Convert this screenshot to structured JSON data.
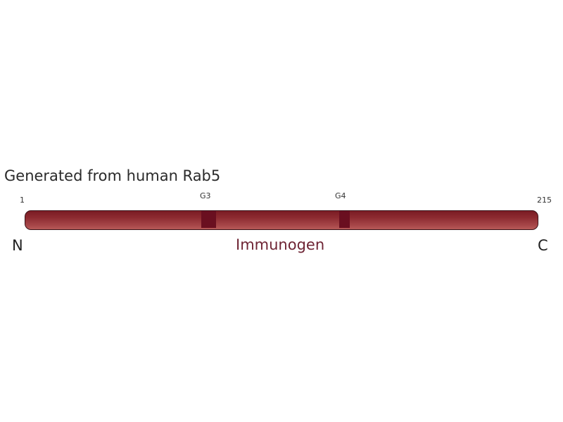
{
  "title": "Generated from human Rab5",
  "protein": {
    "start": "1",
    "end": "215",
    "n_terminus": "N",
    "c_terminus": "C",
    "region_label": "Immunogen",
    "motifs": [
      {
        "label": "G3"
      },
      {
        "label": "G4"
      }
    ]
  },
  "colors": {
    "bar": "#8c2a30",
    "motif": "#6a0f20",
    "region_label": "#6e2434"
  }
}
